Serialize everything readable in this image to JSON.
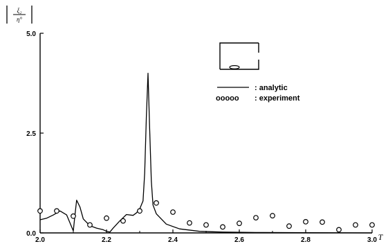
{
  "chart_data": {
    "type": "line",
    "ylabel_numerator": "ξ₂",
    "ylabel_denominator": "η°",
    "xlabel": "T",
    "xlim": [
      2.0,
      3.0
    ],
    "ylim": [
      0.0,
      5.0
    ],
    "x_ticks": [
      "2.0",
      "2.2",
      "2.4",
      "2.6",
      "2.8",
      "3.0"
    ],
    "y_ticks": [
      "0.0",
      "2.5",
      "5.0"
    ],
    "legend_position": "top-right",
    "grid": false,
    "series": [
      {
        "name": "analytic",
        "style": "line",
        "points": [
          [
            2.0,
            0.33
          ],
          [
            2.02,
            0.37
          ],
          [
            2.04,
            0.45
          ],
          [
            2.06,
            0.55
          ],
          [
            2.08,
            0.45
          ],
          [
            2.09,
            0.25
          ],
          [
            2.1,
            0.05
          ],
          [
            2.105,
            0.45
          ],
          [
            2.11,
            0.82
          ],
          [
            2.12,
            0.65
          ],
          [
            2.13,
            0.35
          ],
          [
            2.15,
            0.18
          ],
          [
            2.17,
            0.12
          ],
          [
            2.19,
            0.08
          ],
          [
            2.2,
            0.04
          ],
          [
            2.21,
            0.02
          ],
          [
            2.22,
            0.12
          ],
          [
            2.24,
            0.3
          ],
          [
            2.26,
            0.46
          ],
          [
            2.28,
            0.44
          ],
          [
            2.29,
            0.5
          ],
          [
            2.3,
            0.6
          ],
          [
            2.31,
            0.8
          ],
          [
            2.315,
            1.5
          ],
          [
            2.32,
            2.9
          ],
          [
            2.325,
            4.0
          ],
          [
            2.33,
            2.6
          ],
          [
            2.335,
            1.3
          ],
          [
            2.34,
            0.7
          ],
          [
            2.35,
            0.48
          ],
          [
            2.38,
            0.22
          ],
          [
            2.42,
            0.1
          ],
          [
            2.48,
            0.04
          ],
          [
            2.55,
            0.02
          ],
          [
            2.65,
            0.01
          ],
          [
            2.8,
            0.005
          ],
          [
            3.0,
            0.0
          ]
        ]
      },
      {
        "name": "experiment",
        "style": "markers",
        "points": [
          [
            2.0,
            0.55
          ],
          [
            2.05,
            0.55
          ],
          [
            2.1,
            0.42
          ],
          [
            2.15,
            0.2
          ],
          [
            2.2,
            0.37
          ],
          [
            2.25,
            0.3
          ],
          [
            2.3,
            0.55
          ],
          [
            2.35,
            0.75
          ],
          [
            2.4,
            0.52
          ],
          [
            2.45,
            0.25
          ],
          [
            2.5,
            0.2
          ],
          [
            2.55,
            0.15
          ],
          [
            2.6,
            0.24
          ],
          [
            2.65,
            0.38
          ],
          [
            2.7,
            0.43
          ],
          [
            2.75,
            0.17
          ],
          [
            2.8,
            0.28
          ],
          [
            2.85,
            0.27
          ],
          [
            2.9,
            0.08
          ],
          [
            2.95,
            0.2
          ],
          [
            3.0,
            0.2
          ]
        ]
      }
    ],
    "legend": {
      "analytic_label": ": analytic",
      "experiment_label": ": experiment",
      "experiment_symbol": "ooooo"
    }
  }
}
